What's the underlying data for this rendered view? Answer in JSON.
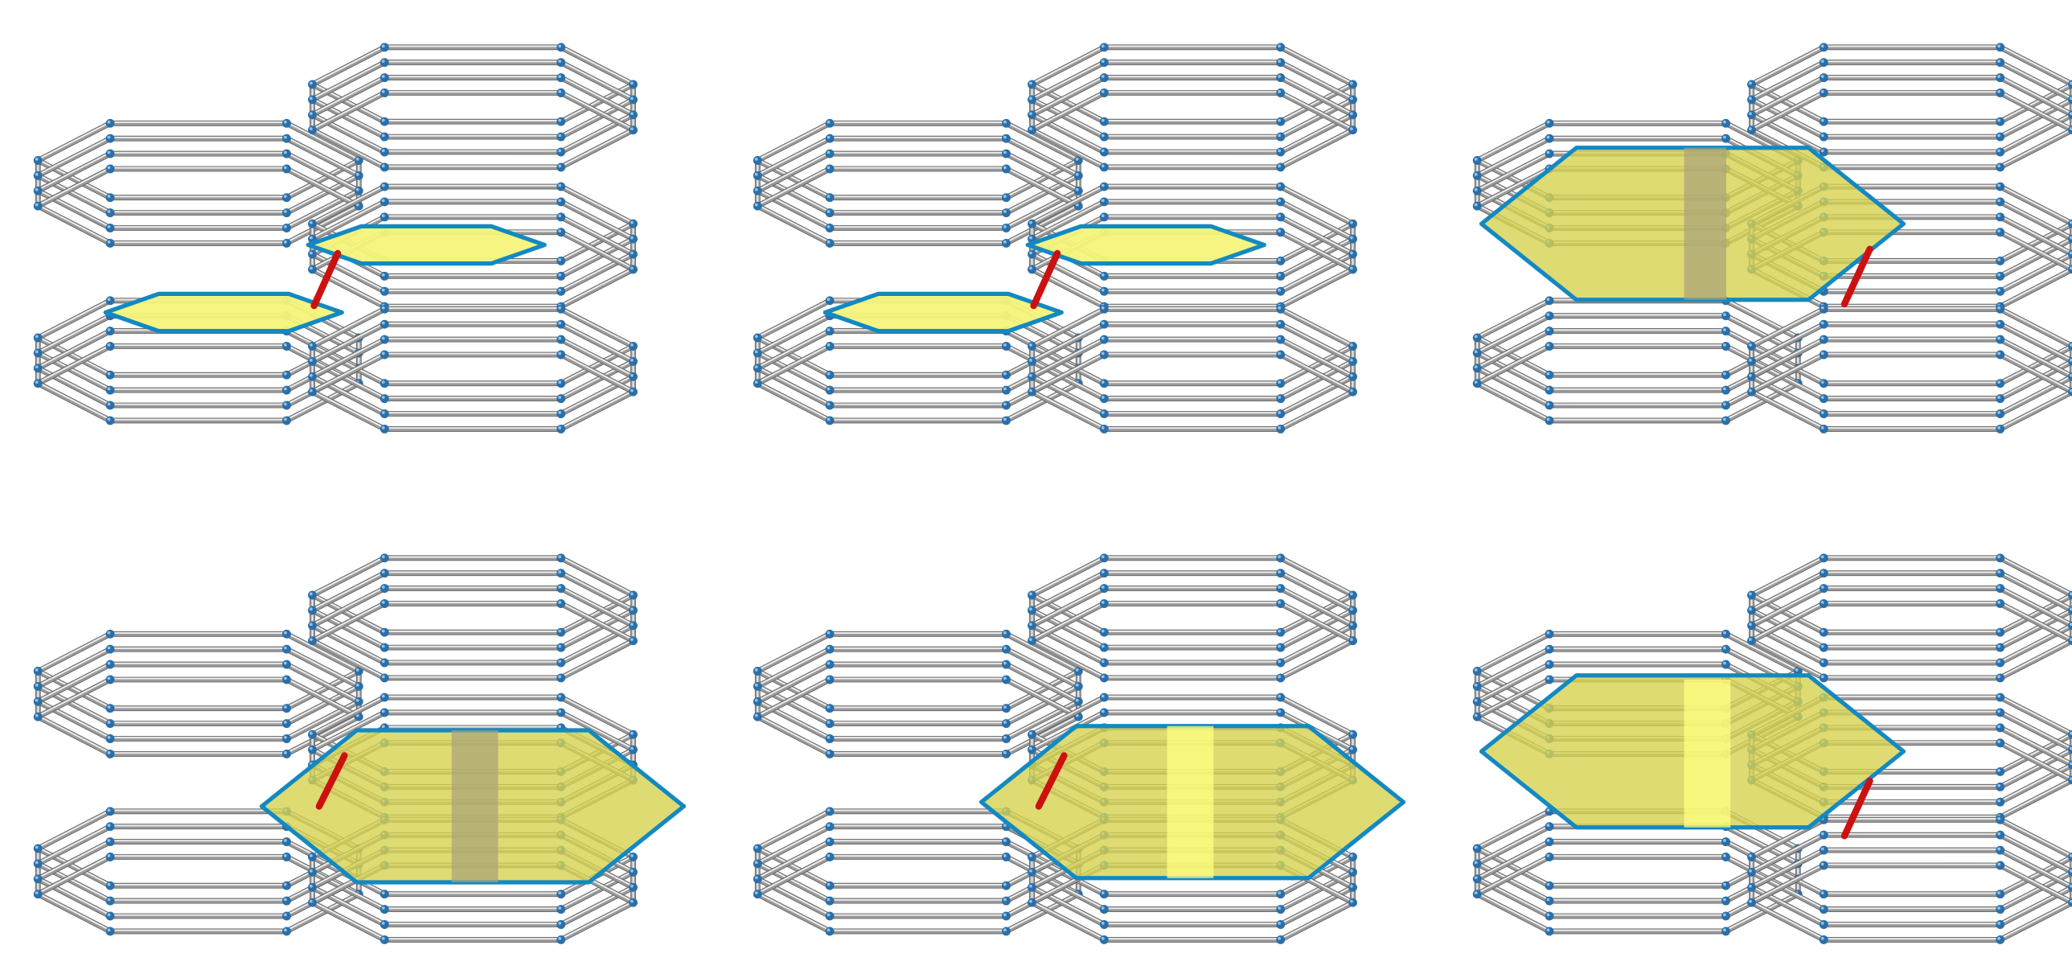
{
  "colors": {
    "background": "#ffffff",
    "bond_light": "#eeeeee",
    "bond_mid": "#9a9a9a",
    "bond_dark": "#5f5f5f",
    "node": "#2c6fa8",
    "ring_outline": "#1389c2",
    "ring_fill_small": "#f6f47a",
    "ring_fill_large": "#d6d250",
    "ring_fill_overlap": "#a9a27a",
    "ring_fill_bright": "#ffff80",
    "shared_edge": "#cc1111"
  },
  "panels": [
    {
      "id": "panel-1",
      "highlight": "small-rings",
      "shared_edge": true
    },
    {
      "id": "panel-2",
      "highlight": "small-rings",
      "shared_edge": true
    },
    {
      "id": "panel-3",
      "highlight": "large-ring-left",
      "shared_edge": true
    },
    {
      "id": "panel-4",
      "highlight": "large-ring-right",
      "shared_edge": true
    },
    {
      "id": "panel-5",
      "highlight": "large-ring-right-bright",
      "shared_edge": true
    },
    {
      "id": "panel-6",
      "highlight": "large-ring-left-bright",
      "shared_edge": true
    }
  ]
}
